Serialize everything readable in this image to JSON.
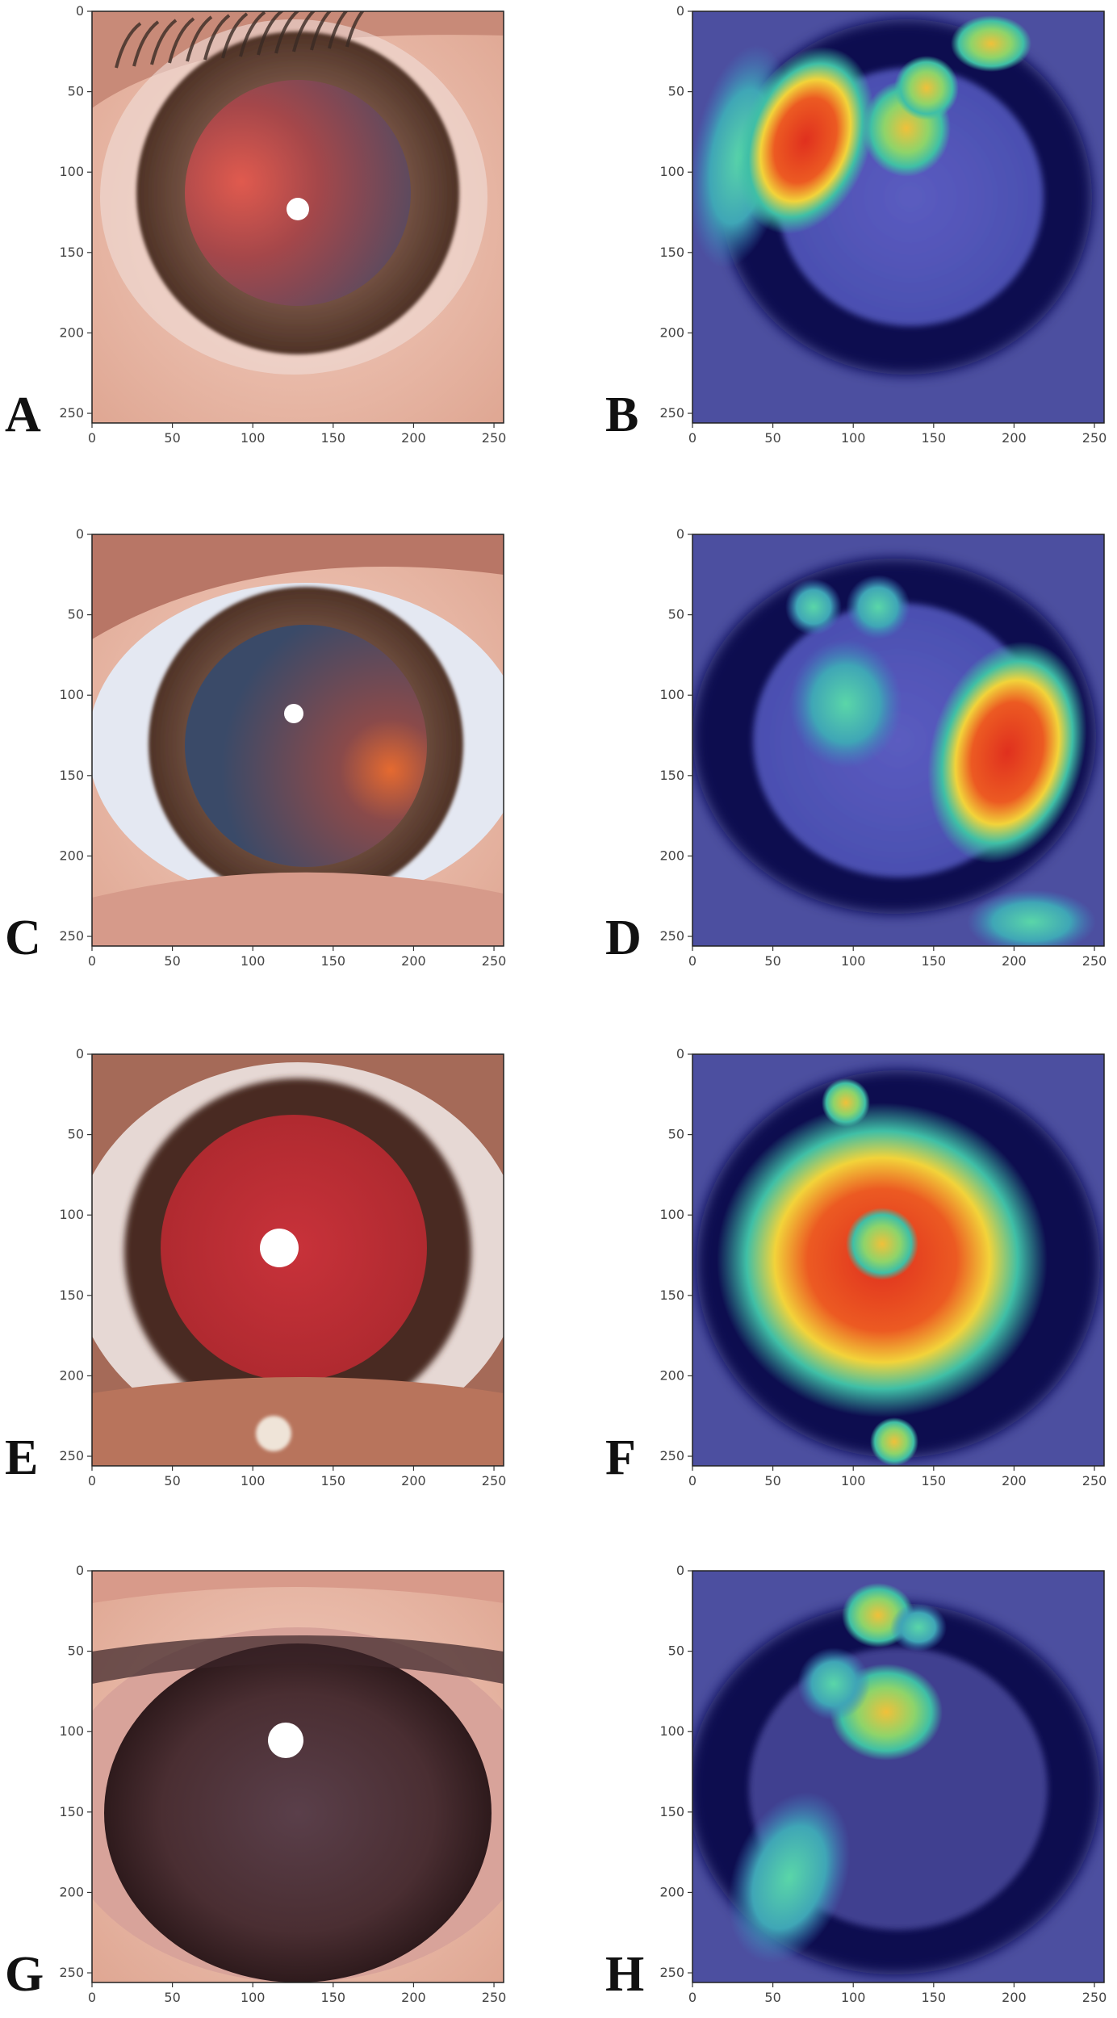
{
  "figure": {
    "panels": [
      {
        "id": "A",
        "label": "A",
        "type": "photo",
        "variant": "red-left"
      },
      {
        "id": "B",
        "label": "B",
        "type": "heatmap",
        "variant": "hot-left"
      },
      {
        "id": "C",
        "label": "C",
        "type": "photo",
        "variant": "red-right"
      },
      {
        "id": "D",
        "label": "D",
        "type": "heatmap",
        "variant": "hot-right"
      },
      {
        "id": "E",
        "label": "E",
        "type": "photo",
        "variant": "red-full"
      },
      {
        "id": "F",
        "label": "F",
        "type": "heatmap",
        "variant": "hot-center"
      },
      {
        "id": "G",
        "label": "G",
        "type": "photo",
        "variant": "dark"
      },
      {
        "id": "H",
        "label": "H",
        "type": "heatmap",
        "variant": "hot-small"
      }
    ],
    "axis": {
      "x_ticks": [
        "0",
        "50",
        "100",
        "150",
        "200",
        "250"
      ],
      "y_ticks": [
        "0",
        "50",
        "100",
        "150",
        "200",
        "250"
      ],
      "x_range": [
        0,
        256
      ],
      "y_range": [
        0,
        256
      ]
    }
  },
  "colors": {
    "photo_skin": "#e9b7a7",
    "photo_iris": "#7a4e3a",
    "pupil_red": "#c9333c",
    "heatmap_bg": "#4c4fa0",
    "heatmap_dark": "#0b0e4f",
    "heatmap_hot": "#e0301e",
    "heatmap_warm": "#f2d33a",
    "heatmap_cool": "#3fbfa6"
  }
}
